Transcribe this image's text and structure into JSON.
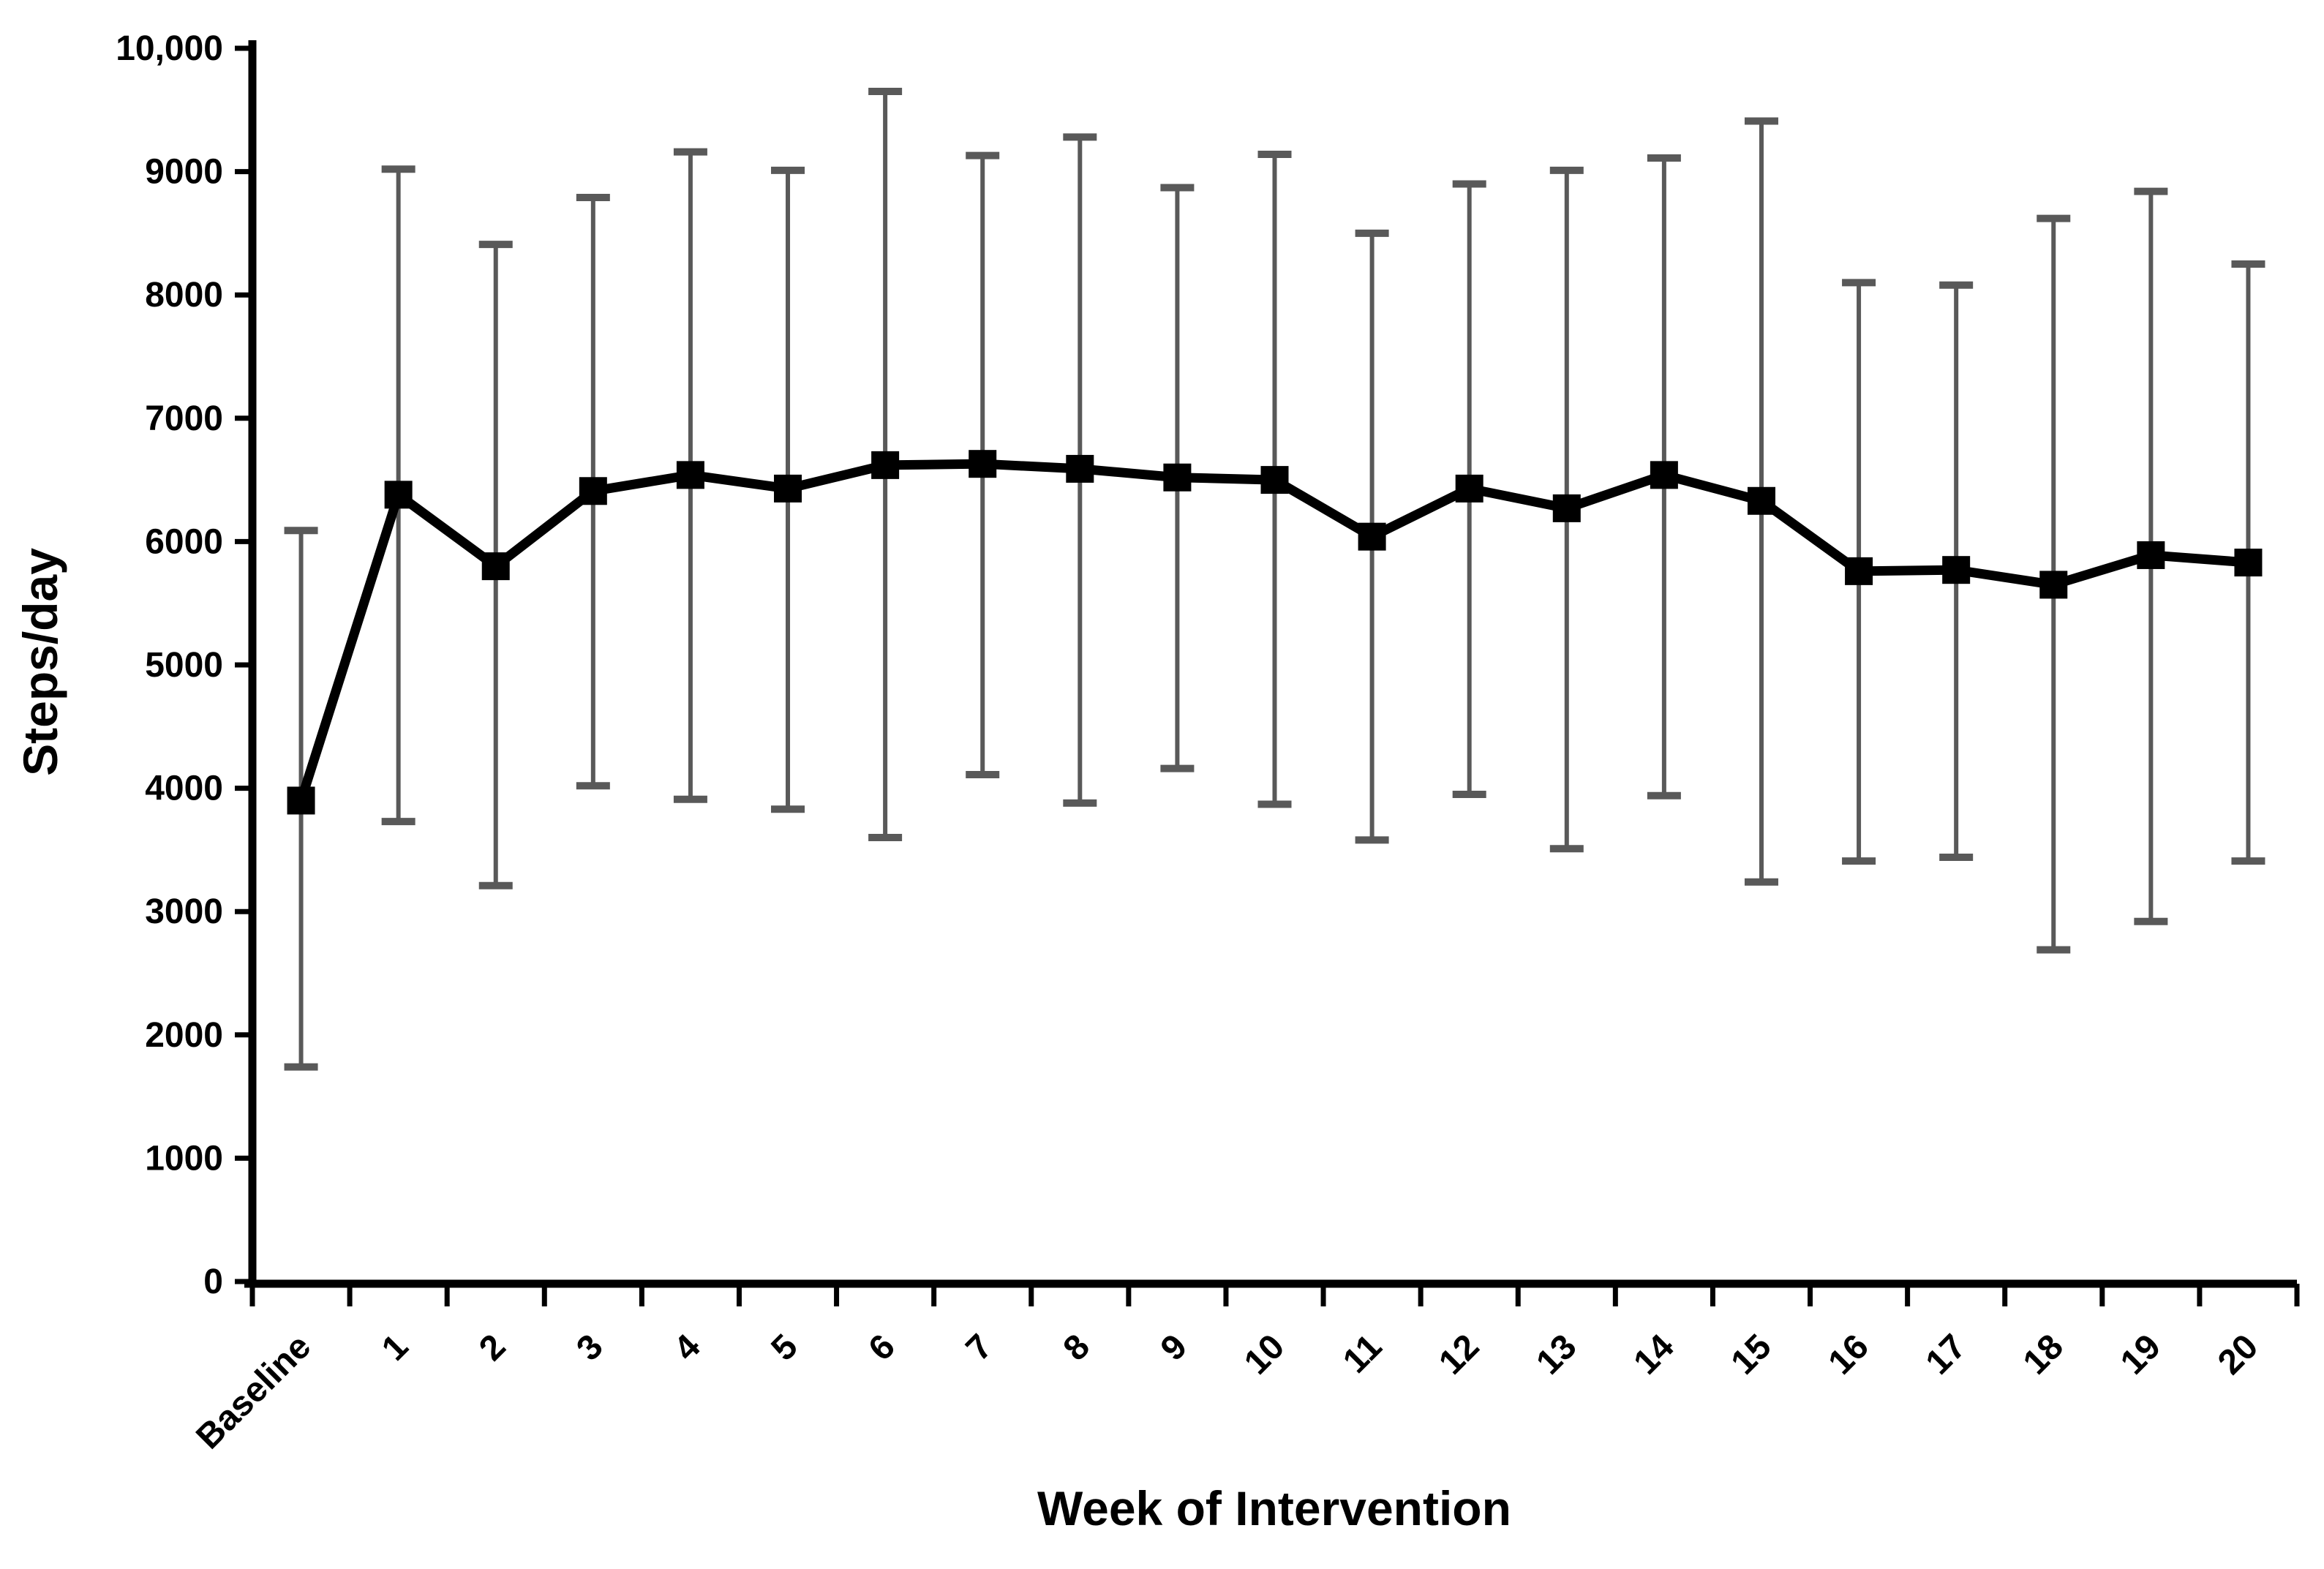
{
  "figure": {
    "x_axis_title": "Week of Intervention",
    "y_axis_title": "Steps/day"
  },
  "chart_data": {
    "type": "line",
    "title": "",
    "xlabel": "Week of Intervention",
    "ylabel": "Steps/day",
    "categories": [
      "Baseline",
      "1",
      "2",
      "3",
      "4",
      "5",
      "6",
      "7",
      "8",
      "9",
      "10",
      "11",
      "12",
      "13",
      "14",
      "15",
      "16",
      "17",
      "18",
      "19",
      "20"
    ],
    "series": [
      {
        "name": "Steps/day",
        "values": [
          3900,
          6380,
          5800,
          6410,
          6540,
          6430,
          6620,
          6630,
          6590,
          6520,
          6500,
          6040,
          6430,
          6270,
          6540,
          6330,
          5760,
          5770,
          5650,
          5890,
          5830
        ]
      }
    ],
    "error_bars": {
      "mode": "absolute",
      "upper": [
        6090,
        9020,
        8410,
        8790,
        9160,
        9010,
        9650,
        9130,
        9280,
        8870,
        9140,
        8500,
        8900,
        9010,
        9110,
        9410,
        8100,
        8080,
        8620,
        8840,
        8250
      ],
      "lower": [
        1740,
        3730,
        3210,
        4020,
        3910,
        3830,
        3600,
        4110,
        3880,
        4160,
        3870,
        3580,
        3950,
        3510,
        3940,
        3240,
        3410,
        3440,
        2690,
        2920,
        3410
      ]
    },
    "ylim": [
      0,
      10000
    ],
    "ytick_interval": 1000,
    "ytick_labels": [
      "0",
      "1000",
      "2000",
      "3000",
      "4000",
      "5000",
      "6000",
      "7000",
      "8000",
      "9000",
      "10,000"
    ],
    "x_label_rotation_deg": -45,
    "grid": false,
    "legend_position": "none",
    "marker": "square",
    "colors": {
      "line": "#000000",
      "marker": "#000000",
      "error_bar": "#595959",
      "axis": "#000000",
      "text": "#000000",
      "background": "#ffffff"
    }
  }
}
